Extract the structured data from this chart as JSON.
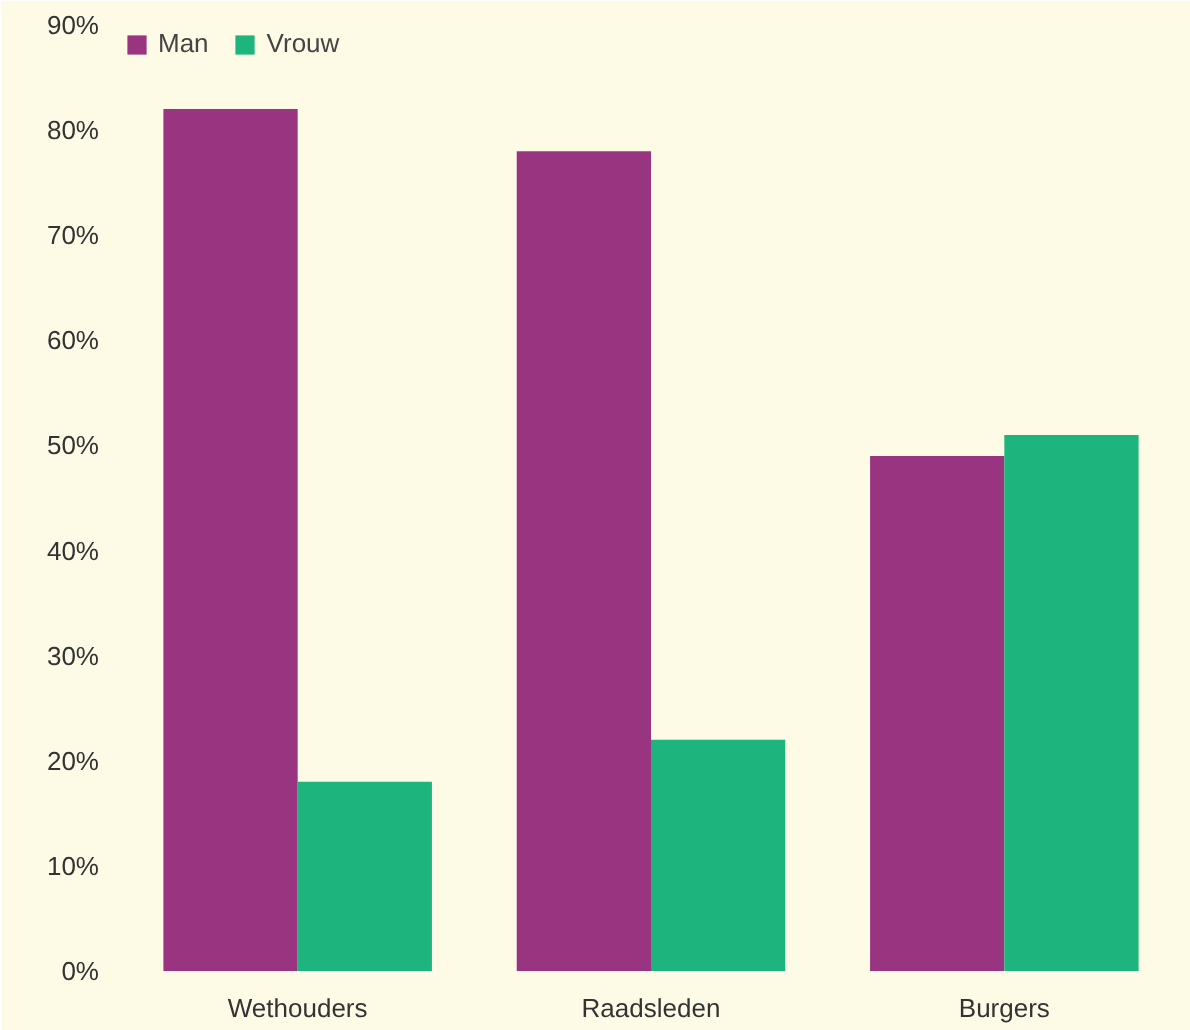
{
  "chart_data": {
    "type": "bar",
    "categories": [
      "Wethouders",
      "Raadsleden",
      "Burgers"
    ],
    "series": [
      {
        "name": "Man",
        "color": "#993580",
        "values": [
          82,
          78,
          49
        ]
      },
      {
        "name": "Vrouw",
        "color": "#1db57d",
        "values": [
          18,
          22,
          51
        ]
      }
    ],
    "ylim": [
      0,
      90
    ],
    "yticks": [
      {
        "value": 0,
        "label": "0%"
      },
      {
        "value": 10,
        "label": "10%"
      },
      {
        "value": 20,
        "label": "20%"
      },
      {
        "value": 30,
        "label": "30%"
      },
      {
        "value": 40,
        "label": "40%"
      },
      {
        "value": 50,
        "label": "50%"
      },
      {
        "value": 60,
        "label": "60%"
      },
      {
        "value": 70,
        "label": "70%"
      },
      {
        "value": 80,
        "label": "80%"
      },
      {
        "value": 90,
        "label": "90%"
      }
    ],
    "grid": false,
    "legend": "top left"
  }
}
